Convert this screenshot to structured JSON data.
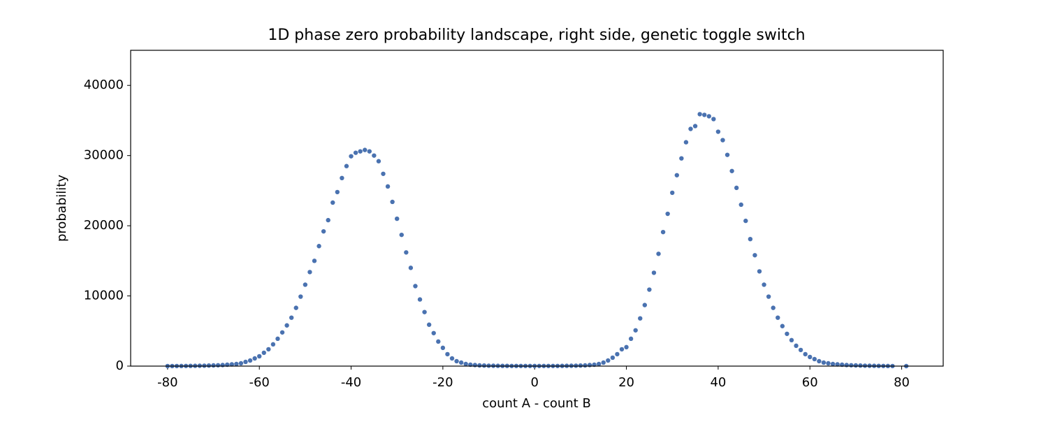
{
  "chart_data": {
    "type": "scatter",
    "title": "1D phase zero probability landscape, right side, genetic toggle switch",
    "xlabel": "count A - count B",
    "ylabel": "probability",
    "color": "#4a72b0",
    "xlim": [
      -88.05,
      89.05
    ],
    "ylim": [
      0,
      45000
    ],
    "xticks": [
      -80,
      -60,
      -40,
      -20,
      0,
      20,
      40,
      60,
      80
    ],
    "yticks": [
      0,
      10000,
      20000,
      30000,
      40000
    ],
    "x": [
      -80,
      -79,
      -78,
      -77,
      -76,
      -75,
      -74,
      -73,
      -72,
      -71,
      -70,
      -69,
      -68,
      -67,
      -66,
      -65,
      -64,
      -63,
      -62,
      -61,
      -60,
      -59,
      -58,
      -57,
      -56,
      -55,
      -54,
      -53,
      -52,
      -51,
      -50,
      -49,
      -48,
      -47,
      -46,
      -45,
      -44,
      -43,
      -42,
      -41,
      -40,
      -39,
      -38,
      -37,
      -36,
      -35,
      -34,
      -33,
      -32,
      -31,
      -30,
      -29,
      -28,
      -27,
      -26,
      -25,
      -24,
      -23,
      -22,
      -21,
      -20,
      -19,
      -18,
      -17,
      -16,
      -15,
      -14,
      -13,
      -12,
      -11,
      -10,
      -9,
      -8,
      -7,
      -6,
      -5,
      -4,
      -3,
      -2,
      -1,
      0,
      1,
      2,
      3,
      4,
      5,
      6,
      7,
      8,
      9,
      10,
      11,
      12,
      13,
      14,
      15,
      16,
      17,
      18,
      19,
      20,
      21,
      22,
      23,
      24,
      25,
      26,
      27,
      28,
      29,
      30,
      31,
      32,
      33,
      34,
      35,
      36,
      37,
      38,
      39,
      40,
      41,
      42,
      43,
      44,
      45,
      46,
      47,
      48,
      49,
      50,
      51,
      52,
      53,
      54,
      55,
      56,
      57,
      58,
      59,
      60,
      61,
      62,
      63,
      64,
      65,
      66,
      67,
      68,
      69,
      70,
      71,
      72,
      73,
      74,
      75,
      76,
      77,
      78,
      81
    ],
    "values": [
      5,
      5,
      10,
      15,
      20,
      30,
      40,
      50,
      60,
      80,
      100,
      120,
      150,
      200,
      250,
      300,
      400,
      600,
      800,
      1100,
      1400,
      1900,
      2400,
      3100,
      3900,
      4800,
      5800,
      6900,
      8300,
      9900,
      11600,
      13400,
      15000,
      17100,
      19200,
      20800,
      23300,
      24800,
      26800,
      28500,
      29900,
      30400,
      30600,
      30800,
      30600,
      30000,
      29200,
      27400,
      25600,
      23400,
      21000,
      18700,
      16200,
      14000,
      11400,
      9500,
      7700,
      5900,
      4700,
      3500,
      2600,
      1700,
      1100,
      700,
      500,
      300,
      200,
      150,
      100,
      80,
      60,
      50,
      40,
      30,
      30,
      20,
      20,
      20,
      20,
      20,
      20,
      20,
      20,
      20,
      20,
      20,
      30,
      40,
      50,
      60,
      80,
      100,
      150,
      200,
      300,
      500,
      800,
      1200,
      1700,
      2400,
      2700,
      3900,
      5100,
      6800,
      8700,
      10900,
      13300,
      16000,
      19100,
      21700,
      24700,
      27200,
      29600,
      31900,
      33800,
      34200,
      35900,
      35800,
      35600,
      35200,
      33400,
      32200,
      30100,
      27800,
      25400,
      23000,
      20700,
      18100,
      15800,
      13500,
      11600,
      9900,
      8300,
      6900,
      5700,
      4600,
      3700,
      2900,
      2300,
      1700,
      1300,
      1000,
      700,
      500,
      400,
      300,
      250,
      200,
      150,
      120,
      100,
      80,
      60,
      50,
      40,
      30,
      20,
      15,
      10,
      0
    ]
  }
}
